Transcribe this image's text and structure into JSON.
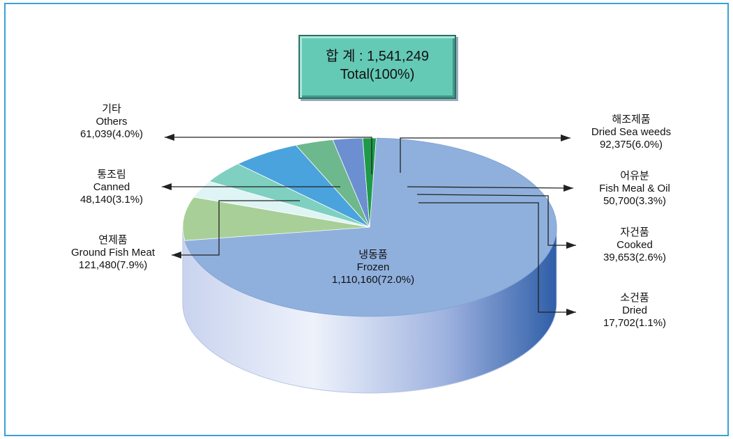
{
  "total": {
    "line1": "합 계 : 1,541,249",
    "line2": "Total(100%)"
  },
  "colors": {
    "frame": "#3aa0d8",
    "frozen": "#8fb0dd",
    "side_light": "#dfe6f6",
    "side_dark": "#2f5ea8"
  },
  "chart_data": {
    "type": "pie",
    "style": "3d",
    "total": 1541249,
    "slices": [
      {
        "key": "frozen",
        "label_ko": "냉동품",
        "label_en": "Frozen",
        "value": 1110160,
        "percent": 72.0,
        "display_value": "1,110,160(72.0%)",
        "color": "#8fb0dd"
      },
      {
        "key": "ground",
        "label_ko": "연제품",
        "label_en": "Ground Fish Meat",
        "value": 121480,
        "percent": 7.9,
        "display_value": "121,480(7.9%)",
        "color": "#a9cf98"
      },
      {
        "key": "canned",
        "label_ko": "통조림",
        "label_en": "Canned",
        "value": 48140,
        "percent": 3.1,
        "display_value": "48,140(3.1%)",
        "color": "#dff4f4"
      },
      {
        "key": "others",
        "label_ko": "기타",
        "label_en": "Others",
        "value": 61039,
        "percent": 4.0,
        "display_value": "61,039(4.0%)",
        "color": "#7fd0c0"
      },
      {
        "key": "seaweeds",
        "label_ko": "해조제품",
        "label_en": "Dried Sea weeds",
        "value": 92375,
        "percent": 6.0,
        "display_value": "92,375(6.0%)",
        "color": "#4aa3dc"
      },
      {
        "key": "fishmeal",
        "label_ko": "어유분",
        "label_en": "Fish Meal & Oil",
        "value": 50700,
        "percent": 3.3,
        "display_value": "50,700(3.3%)",
        "color": "#6db88c"
      },
      {
        "key": "cooked",
        "label_ko": "자건품",
        "label_en": "Cooked",
        "value": 39653,
        "percent": 2.6,
        "display_value": "39,653(2.6%)",
        "color": "#6b8fd0"
      },
      {
        "key": "dried",
        "label_ko": "소건품",
        "label_en": "Dried",
        "value": 17702,
        "percent": 1.1,
        "display_value": "17,702(1.1%)",
        "color": "#1e9a4a"
      }
    ]
  }
}
